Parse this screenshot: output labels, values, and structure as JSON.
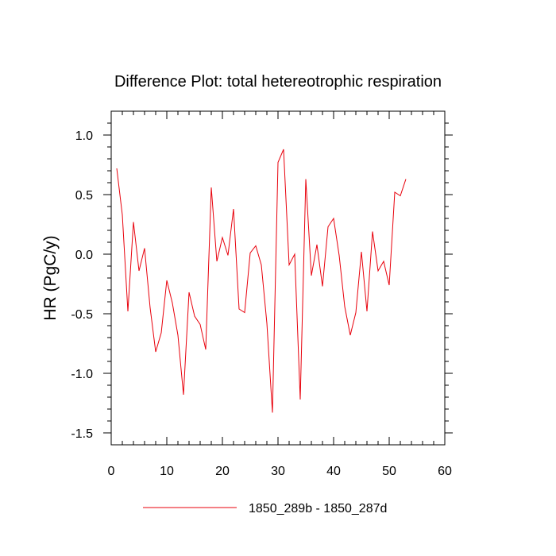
{
  "chart_data": {
    "type": "line",
    "title": "Difference Plot: total hetereotrophic respiration",
    "xlabel": "",
    "ylabel": "HR  (PgC/y)",
    "xlim": [
      0,
      60
    ],
    "ylim": [
      -1.6,
      1.2
    ],
    "xticks": [
      0,
      10,
      20,
      30,
      40,
      50,
      60
    ],
    "xtick_labels": [
      "0",
      "10",
      "20",
      "30",
      "40",
      "50",
      "60"
    ],
    "yticks": [
      -1.5,
      -1.0,
      -0.5,
      0.0,
      0.5,
      1.0
    ],
    "ytick_labels": [
      "-1.5",
      "-1.0",
      "-0.5",
      "0.0",
      "0.5",
      "1.0"
    ],
    "grid": false,
    "legend_position": "bottom",
    "series": [
      {
        "name": "1850_289b - 1850_287d",
        "color": "#e8000b",
        "x": [
          1,
          2,
          3,
          4,
          5,
          6,
          7,
          8,
          9,
          10,
          11,
          12,
          13,
          14,
          15,
          16,
          17,
          18,
          19,
          20,
          21,
          22,
          23,
          24,
          25,
          26,
          27,
          28,
          29,
          30,
          31,
          32,
          33,
          34,
          35,
          36,
          37,
          38,
          39,
          40,
          41,
          42,
          43,
          44,
          45,
          46,
          47,
          48,
          49,
          50,
          51,
          52,
          53
        ],
        "values": [
          0.72,
          0.33,
          -0.48,
          0.27,
          -0.14,
          0.05,
          -0.45,
          -0.82,
          -0.66,
          -0.22,
          -0.41,
          -0.68,
          -1.18,
          -0.32,
          -0.52,
          -0.59,
          -0.8,
          0.56,
          -0.06,
          0.14,
          -0.01,
          0.38,
          -0.46,
          -0.49,
          0.01,
          0.07,
          -0.09,
          -0.58,
          -1.33,
          0.77,
          0.88,
          -0.09,
          0.0,
          -1.22,
          0.63,
          -0.18,
          0.08,
          -0.27,
          0.23,
          0.3,
          -0.01,
          -0.44,
          -0.68,
          -0.49,
          0.02,
          -0.48,
          0.19,
          -0.14,
          -0.06,
          -0.26,
          0.52,
          0.49,
          0.63
        ]
      }
    ]
  }
}
